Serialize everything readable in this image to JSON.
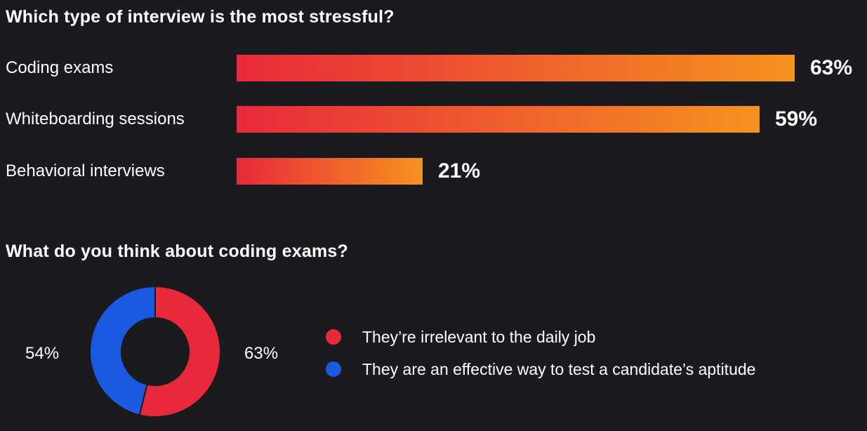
{
  "chart_data": [
    {
      "type": "bar",
      "orientation": "horizontal",
      "title": "Which type of interview is the most stressful?",
      "categories": [
        "Coding exams",
        "Whiteboarding sessions",
        "Behavioral interviews"
      ],
      "values": [
        63,
        59,
        21
      ],
      "value_labels": [
        "63%",
        "59%",
        "21%"
      ],
      "unit": "%",
      "gradient_colors": [
        "#e8293b",
        "#f5931f"
      ]
    },
    {
      "type": "pie",
      "variant": "donut",
      "title": "What do you think about coding exams?",
      "slices": [
        {
          "label": "They’re irrelevant to the daily job",
          "value": 63,
          "value_label": "63%",
          "color": "#e8293b"
        },
        {
          "label": "They are an effective way to test a candidate’s aptitude",
          "value": 54,
          "value_label": "54%",
          "color": "#1a5ae0"
        }
      ],
      "legend_position": "right"
    }
  ]
}
